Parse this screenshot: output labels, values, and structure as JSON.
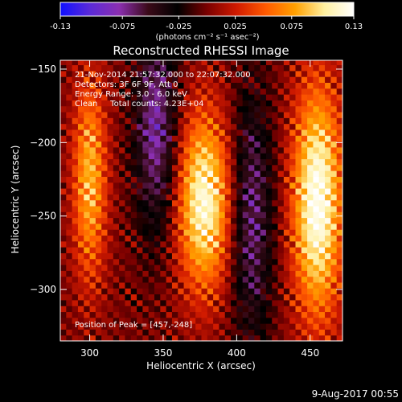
{
  "colorbar": {
    "min": -0.13,
    "max": 0.13,
    "tick_labels": [
      "-0.13",
      "-0.075",
      "-0.025",
      "0.025",
      "0.075",
      "0.13"
    ],
    "tick_values": [
      -0.13,
      -0.075,
      -0.025,
      0.025,
      0.075,
      0.13
    ],
    "units_label": "(photons cm⁻² s⁻¹ asec⁻²)",
    "colors": [
      "#1010ff",
      "#5a2ad8",
      "#8b2fb0",
      "#3a0a18",
      "#000000",
      "#7a0000",
      "#d01a00",
      "#ff5a00",
      "#ffa000",
      "#fff0a0",
      "#ffffff"
    ]
  },
  "chart_data": {
    "type": "heatmap",
    "title": "Reconstructed RHESSI Image",
    "xlabel": "Heliocentric X (arcsec)",
    "ylabel": "Heliocentric Y (arcsec)",
    "xlim": [
      280,
      472
    ],
    "ylim": [
      -335,
      -144
    ],
    "x_ticks": [
      300,
      350,
      400,
      450
    ],
    "x_tick_labels": [
      "300",
      "350",
      "400",
      "450"
    ],
    "y_ticks": [
      -150,
      -200,
      -250,
      -300
    ],
    "y_tick_labels": [
      "−150",
      "−200",
      "−250",
      "−300"
    ],
    "annotations": [
      "21-Nov-2014 21:57:32.000 to 22:07:32.000",
      "Detectors: 3F 6F 9F, Att 0",
      "Energy Range: 3.0 - 6.0 keV",
      "Clean     Total counts: 4.23E+04"
    ],
    "peak_label": "Position of Peak = [457,-248]",
    "peak": [
      457,
      -248
    ],
    "sources": [
      {
        "x": 300,
        "y": -225,
        "sx": 8,
        "sy": 48,
        "amp": 0.085
      },
      {
        "x": 378,
        "y": -240,
        "sx": 13,
        "sy": 42,
        "amp": 0.12
      },
      {
        "x": 455,
        "y": -240,
        "sx": 12,
        "sy": 55,
        "amp": 0.13
      },
      {
        "x": 345,
        "y": -190,
        "sx": 10,
        "sy": 50,
        "amp": -0.08
      },
      {
        "x": 410,
        "y": -250,
        "sx": 10,
        "sy": 60,
        "amp": -0.07
      }
    ]
  },
  "footer": {
    "date": "9-Aug-2017 00:55"
  }
}
